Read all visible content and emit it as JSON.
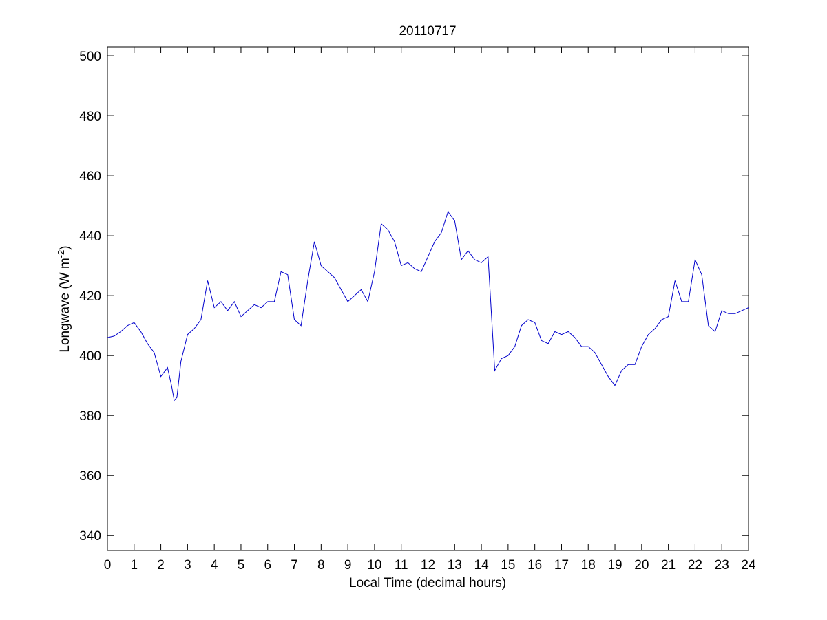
{
  "chart_data": {
    "type": "line",
    "title": "20110717",
    "xlabel": "Local Time (decimal hours)",
    "ylabel": {
      "main": "Longwave (W m",
      "sup": "-2",
      "close": ")"
    },
    "xlim": [
      0,
      24
    ],
    "ylim": [
      335,
      503
    ],
    "xticks": [
      0,
      1,
      2,
      3,
      4,
      5,
      6,
      7,
      8,
      9,
      10,
      11,
      12,
      13,
      14,
      15,
      16,
      17,
      18,
      19,
      20,
      21,
      22,
      23,
      24
    ],
    "yticks": [
      340,
      360,
      380,
      400,
      420,
      440,
      460,
      480,
      500
    ],
    "grid": false,
    "line_color": "#0000cc",
    "series": [
      {
        "x": [
          0,
          0.25,
          0.5,
          0.75,
          1,
          1.25,
          1.5,
          1.75,
          2,
          2.25,
          2.4,
          2.5,
          2.6,
          2.75,
          3,
          3.25,
          3.5,
          3.75,
          4,
          4.25,
          4.5,
          4.75,
          5,
          5.25,
          5.5,
          5.75,
          6,
          6.25,
          6.5,
          6.75,
          7,
          7.25,
          7.5,
          7.75,
          8,
          8.25,
          8.5,
          8.75,
          9,
          9.25,
          9.5,
          9.75,
          10,
          10.25,
          10.5,
          10.75,
          11,
          11.25,
          11.5,
          11.75,
          12,
          12.25,
          12.5,
          12.75,
          13,
          13.25,
          13.5,
          13.75,
          14,
          14.25,
          14.5,
          14.75,
          15,
          15.25,
          15.5,
          15.75,
          16,
          16.25,
          16.5,
          16.75,
          17,
          17.25,
          17.5,
          17.75,
          18,
          18.25,
          18.5,
          18.75,
          19,
          19.25,
          19.5,
          19.75,
          20,
          20.25,
          20.5,
          20.75,
          21,
          21.25,
          21.5,
          21.75,
          22,
          22.25,
          22.5,
          22.75,
          23,
          23.25,
          23.5,
          23.75,
          24
        ],
        "y": [
          406,
          406.5,
          408,
          410,
          411,
          408,
          404,
          401,
          393,
          396,
          390,
          385,
          386,
          398,
          407,
          409,
          412,
          425,
          416,
          418,
          415,
          418,
          413,
          415,
          417,
          416,
          418,
          418,
          428,
          427,
          412,
          410,
          425,
          438,
          430,
          428,
          426,
          422,
          418,
          420,
          422,
          418,
          428,
          444,
          442,
          438,
          430,
          431,
          429,
          428,
          433,
          438,
          441,
          448,
          445,
          432,
          435,
          432,
          431,
          433,
          395,
          399,
          400,
          403,
          410,
          412,
          411,
          405,
          404,
          408,
          407,
          408,
          406,
          403,
          403,
          401,
          397,
          393,
          390,
          395,
          397,
          397,
          403,
          407,
          409,
          412,
          413,
          425,
          418,
          418,
          432,
          427,
          410,
          408,
          415,
          414,
          414,
          415,
          416
        ]
      }
    ]
  }
}
